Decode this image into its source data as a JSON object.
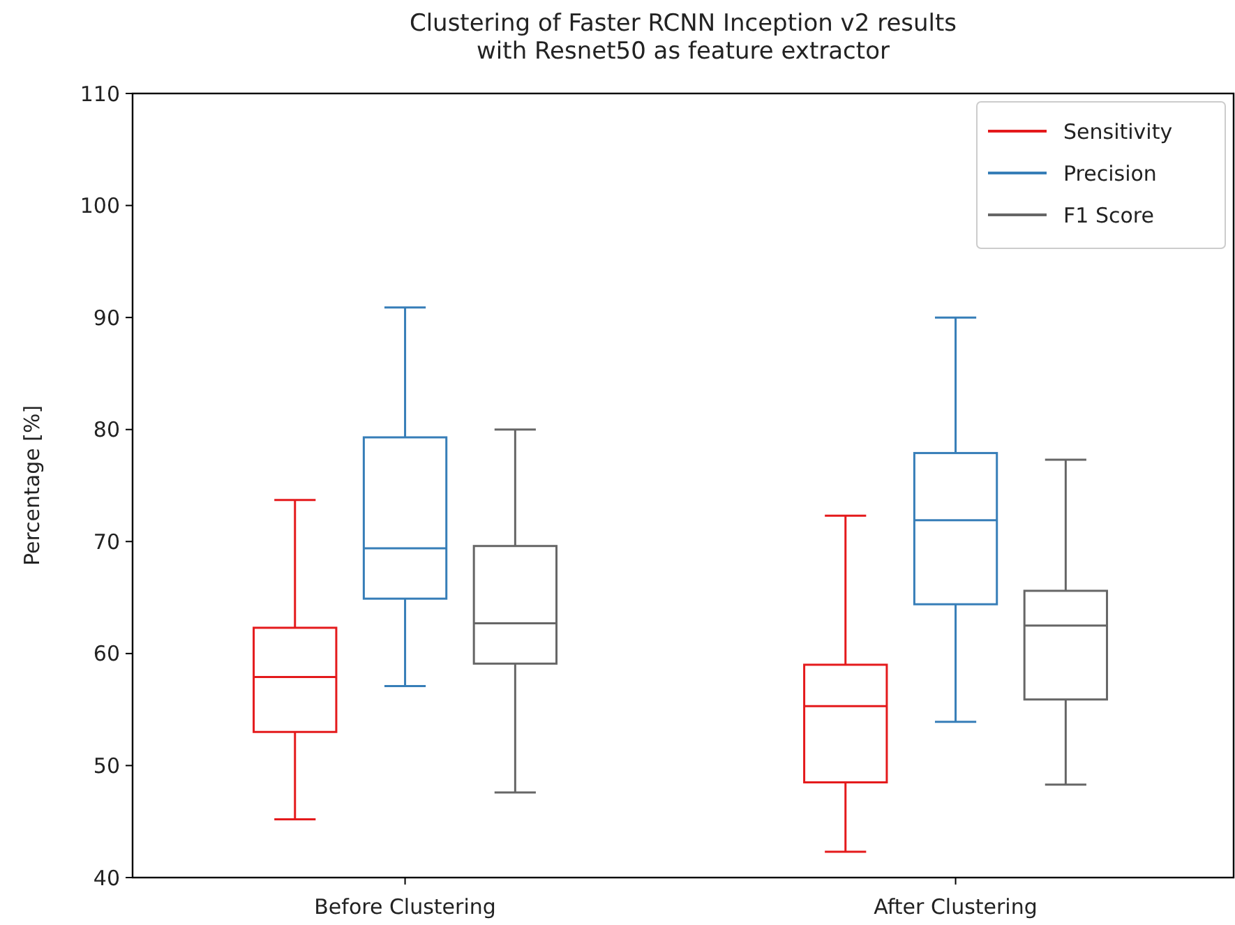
{
  "chart_data": {
    "type": "box",
    "title": "Clustering of Faster RCNN Inception v2 results\nwith Resnet50 as feature extractor",
    "ylabel": "Percentage [%]",
    "categories": [
      "Before Clustering",
      "After Clustering"
    ],
    "series": [
      {
        "name": "Sensitivity",
        "color": "#e41a1c",
        "boxes": [
          {
            "low": 45.2,
            "q1": 53,
            "median": 57.9,
            "q3": 62.3,
            "high": 73.7
          },
          {
            "low": 42.3,
            "q1": 48.5,
            "median": 55.3,
            "q3": 59,
            "high": 72.3
          }
        ]
      },
      {
        "name": "Precision",
        "color": "#377eb8",
        "boxes": [
          {
            "low": 57.1,
            "q1": 64.9,
            "median": 69.4,
            "q3": 79.3,
            "high": 90.9
          },
          {
            "low": 53.9,
            "q1": 64.4,
            "median": 71.9,
            "q3": 77.9,
            "high": 90
          }
        ]
      },
      {
        "name": "F1 Score",
        "color": "#666666",
        "boxes": [
          {
            "low": 47.6,
            "q1": 59.1,
            "median": 62.7,
            "q3": 69.6,
            "high": 80
          },
          {
            "low": 48.3,
            "q1": 55.9,
            "median": 62.5,
            "q3": 65.6,
            "high": 77.3
          }
        ]
      }
    ],
    "ylim": [
      40,
      110
    ],
    "yticks": [
      40,
      50,
      60,
      70,
      80,
      90,
      100,
      110
    ],
    "legend": "top right",
    "grid": false
  }
}
